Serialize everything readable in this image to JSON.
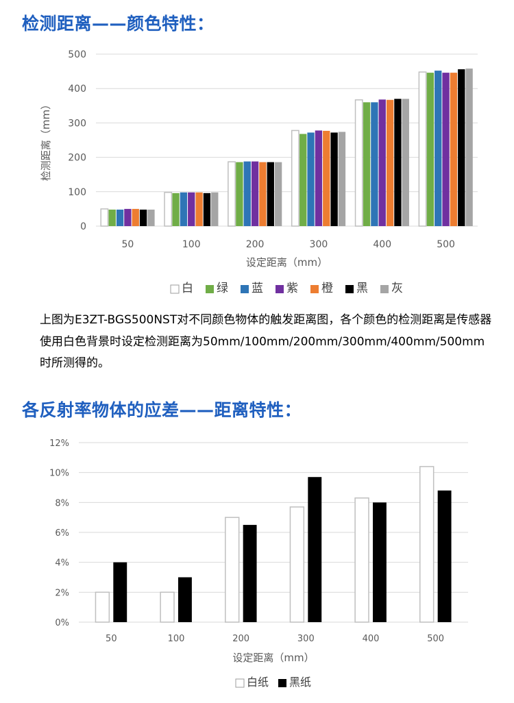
{
  "sections": {
    "detect_title": "检测距离——颜色特性：",
    "description": "上图为E3ZT-BGS500NST对不同颜色物体的触发距离图，各个颜色的检测距离是传感器使用白色背景时设定检测距离为50mm/100mm/200mm/300mm/400mm/500mm时所测得的。",
    "hysteresis_title": "各反射率物体的应差——距离特性："
  },
  "chart_data": [
    {
      "type": "bar",
      "title": "",
      "xlabel": "设定距离（mm）",
      "ylabel": "检测距离（mm）",
      "ylim": [
        0,
        500
      ],
      "yticks": [
        0,
        100,
        200,
        300,
        400,
        500
      ],
      "grid": true,
      "legend": "bottom",
      "categories": [
        "50",
        "100",
        "200",
        "300",
        "400",
        "500"
      ],
      "series": [
        {
          "name": "白",
          "color": "#ffffff",
          "stroke": "#bfbfbf",
          "values": [
            50,
            98,
            187,
            278,
            367,
            448
          ]
        },
        {
          "name": "绿",
          "color": "#70ad47",
          "values": [
            48,
            96,
            186,
            268,
            360,
            446
          ]
        },
        {
          "name": "蓝",
          "color": "#2e75b6",
          "values": [
            48,
            98,
            188,
            272,
            360,
            452
          ]
        },
        {
          "name": "紫",
          "color": "#7030a0",
          "values": [
            50,
            98,
            188,
            278,
            368,
            446
          ]
        },
        {
          "name": "橙",
          "color": "#ed7d31",
          "values": [
            50,
            98,
            186,
            277,
            367,
            446
          ]
        },
        {
          "name": "黑",
          "color": "#000000",
          "values": [
            48,
            96,
            186,
            272,
            370,
            456
          ]
        },
        {
          "name": "灰",
          "color": "#a5a5a5",
          "values": [
            48,
            98,
            186,
            274,
            370,
            458
          ]
        }
      ]
    },
    {
      "type": "bar",
      "title": "",
      "xlabel": "设定距离（mm）",
      "ylabel": "",
      "ylim": [
        0,
        12
      ],
      "yticks": [
        0,
        2,
        4,
        6,
        8,
        10,
        12
      ],
      "ytick_suffix": "%",
      "grid": true,
      "legend": "bottom",
      "categories": [
        "50",
        "100",
        "200",
        "300",
        "400",
        "500"
      ],
      "series": [
        {
          "name": "白纸",
          "color": "#ffffff",
          "stroke": "#bfbfbf",
          "values": [
            2,
            2,
            7,
            7.7,
            8.3,
            10.4
          ]
        },
        {
          "name": "黑纸",
          "color": "#000000",
          "values": [
            4,
            3,
            6.5,
            9.7,
            8,
            8.8
          ]
        }
      ]
    }
  ]
}
